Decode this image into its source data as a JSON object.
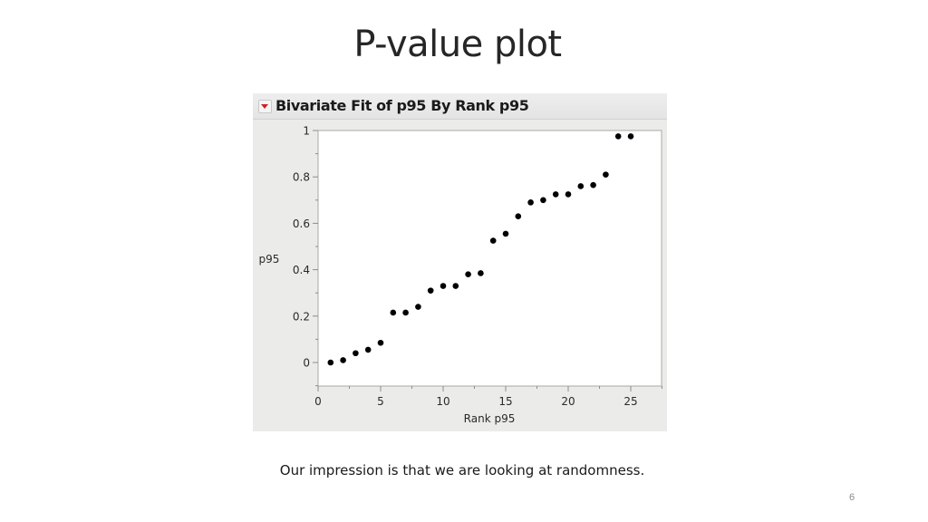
{
  "slide": {
    "title": "P-value plot",
    "caption": "Our impression is that we are looking at randomness.",
    "page_number": "6"
  },
  "panel": {
    "title": "Bivariate Fit of p95 By Rank p95",
    "disclosure_icon": "red-triangle-down"
  },
  "colors": {
    "panel_bg": "#ebebea",
    "plot_bg": "#ffffff",
    "marker": "#000000",
    "disclosure": "#d0202a"
  },
  "chart_data": {
    "type": "scatter",
    "title": "Bivariate Fit of p95 By Rank p95",
    "xlabel": "Rank p95",
    "ylabel": "p95",
    "xlim": [
      0,
      27.5
    ],
    "ylim": [
      -0.1,
      1.0
    ],
    "xticks": [
      0,
      5,
      10,
      15,
      20,
      25
    ],
    "xtick_labels": [
      "0",
      "5",
      "10",
      "15",
      "20",
      "25"
    ],
    "yticks": [
      0,
      0.2,
      0.4,
      0.6,
      0.8,
      1
    ],
    "ytick_labels": [
      "0",
      "0.2",
      "0.4",
      "0.6",
      "0.8",
      "1"
    ],
    "grid": false,
    "legend": null,
    "x": [
      1,
      2,
      3,
      4,
      5,
      6,
      7,
      8,
      9,
      10,
      11,
      12,
      13,
      14,
      15,
      16,
      17,
      18,
      19,
      20,
      21,
      22,
      23,
      24,
      25
    ],
    "y": [
      0.0,
      0.01,
      0.04,
      0.055,
      0.085,
      0.215,
      0.215,
      0.24,
      0.31,
      0.33,
      0.33,
      0.38,
      0.385,
      0.525,
      0.555,
      0.63,
      0.69,
      0.7,
      0.725,
      0.725,
      0.76,
      0.765,
      0.81,
      0.975,
      0.975
    ]
  }
}
